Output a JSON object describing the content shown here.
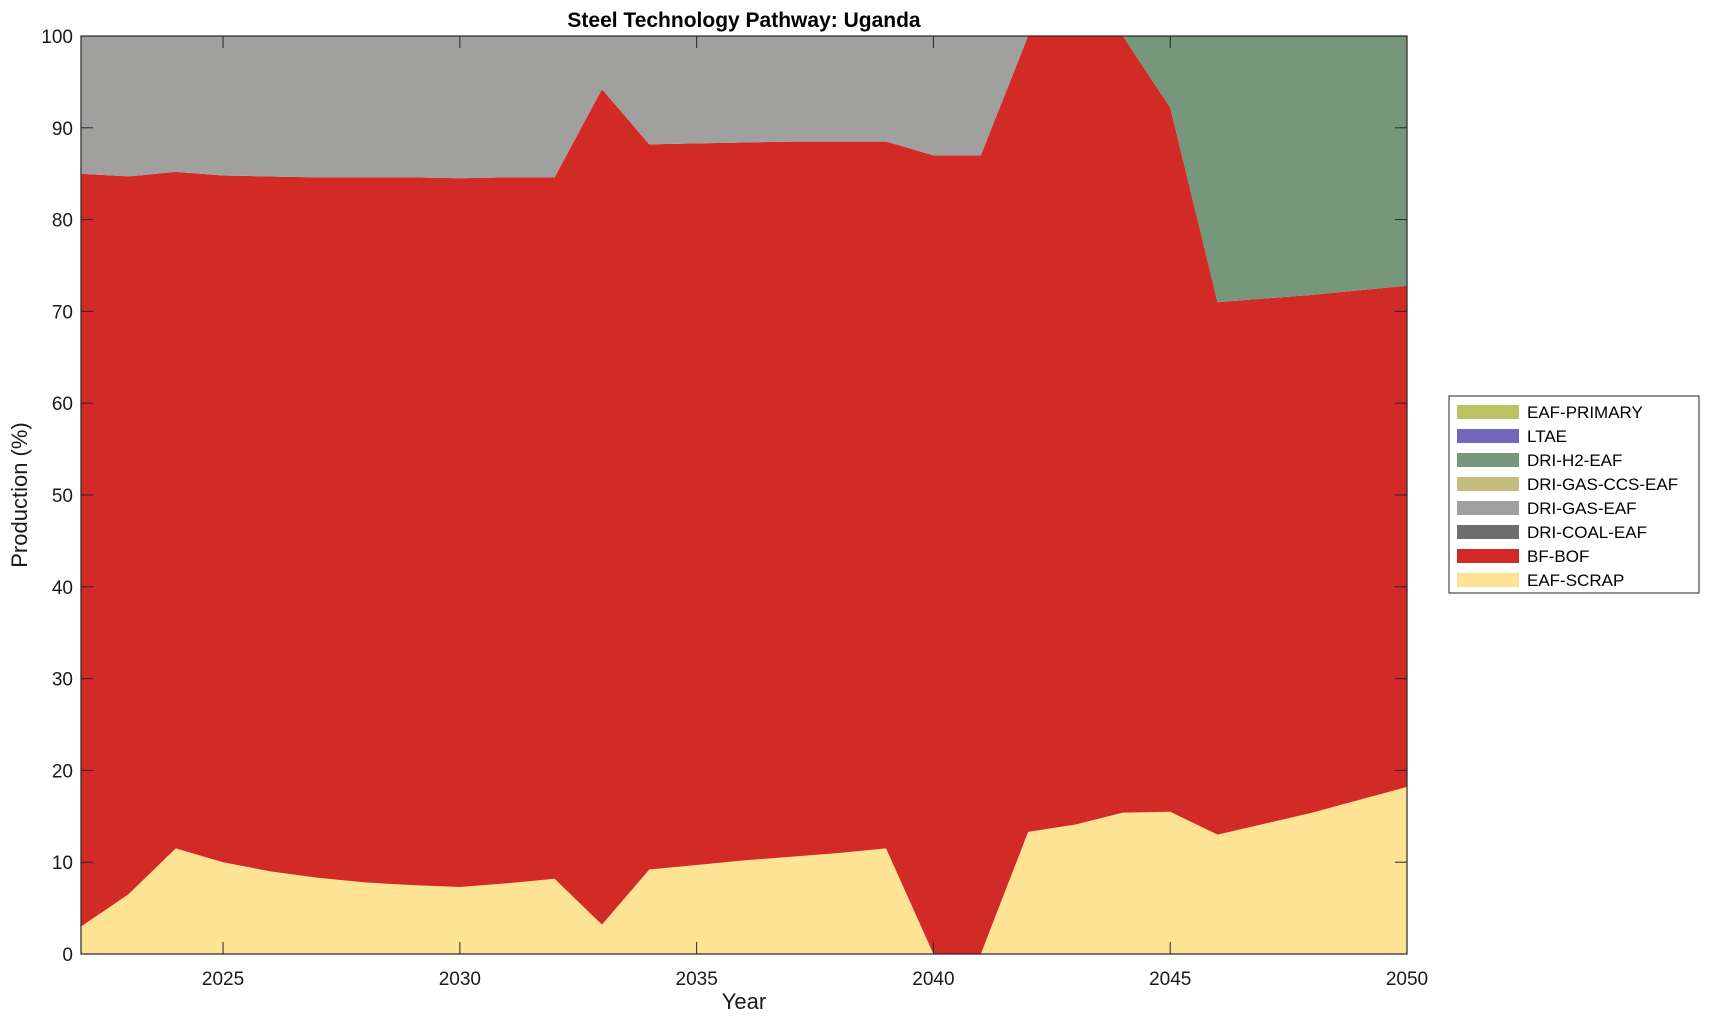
{
  "chart_data": {
    "type": "area",
    "stacked": true,
    "title": "Steel Technology Pathway: Uganda",
    "xlabel": "Year",
    "ylabel": "Production (%)",
    "xlim": [
      2022,
      2050
    ],
    "ylim": [
      0,
      100
    ],
    "x_ticks": [
      2025,
      2030,
      2035,
      2040,
      2045,
      2050
    ],
    "y_ticks": [
      0,
      10,
      20,
      30,
      40,
      50,
      60,
      70,
      80,
      90,
      100
    ],
    "grid": false,
    "legend_position": "right",
    "x": [
      2022,
      2023,
      2024,
      2025,
      2026,
      2027,
      2028,
      2029,
      2030,
      2031,
      2032,
      2033,
      2034,
      2035,
      2036,
      2037,
      2038,
      2039,
      2040,
      2041,
      2042,
      2043,
      2044,
      2045,
      2046,
      2047,
      2048,
      2049,
      2050
    ],
    "series": [
      {
        "name": "EAF-SCRAP",
        "color": "#FFE394",
        "values": [
          3.0,
          6.5,
          11.5,
          10.0,
          9.0,
          8.3,
          7.8,
          7.5,
          7.3,
          7.7,
          8.2,
          3.2,
          9.2,
          9.7,
          10.2,
          10.6,
          11.0,
          11.5,
          0.0,
          0.0,
          13.3,
          14.1,
          15.4,
          15.5,
          13.0,
          14.2,
          15.4,
          16.8,
          18.2
        ]
      },
      {
        "name": "BF-BOF",
        "color": "#D22A25",
        "values": [
          82.0,
          78.2,
          73.7,
          74.8,
          75.7,
          76.3,
          76.8,
          77.1,
          77.2,
          76.9,
          76.4,
          91.0,
          79.0,
          78.6,
          78.2,
          77.9,
          77.5,
          77.0,
          87.0,
          87.0,
          86.7,
          85.9,
          84.6,
          76.7,
          58.0,
          57.2,
          56.4,
          55.5,
          54.6
        ]
      },
      {
        "name": "DRI-COAL-EAF",
        "color": "#6D6D6D",
        "values": [
          0,
          0,
          0,
          0,
          0,
          0,
          0,
          0,
          0,
          0,
          0,
          0,
          0,
          0,
          0,
          0,
          0,
          0,
          0,
          0,
          0,
          0,
          0,
          0,
          0,
          0,
          0,
          0,
          0
        ]
      },
      {
        "name": "DRI-GAS-EAF",
        "color": "#A0A09E",
        "values": [
          15.0,
          15.3,
          14.8,
          15.2,
          15.3,
          15.4,
          15.4,
          15.4,
          15.5,
          15.4,
          15.4,
          5.8,
          11.8,
          11.7,
          11.6,
          11.5,
          11.5,
          11.5,
          13.0,
          13.0,
          0,
          0,
          0,
          0,
          0,
          0,
          0,
          0,
          0
        ]
      },
      {
        "name": "DRI-GAS-CCS-EAF",
        "color": "#C4BD7D",
        "values": [
          0,
          0,
          0,
          0,
          0,
          0,
          0,
          0,
          0,
          0,
          0,
          0,
          0,
          0,
          0,
          0,
          0,
          0,
          0,
          0,
          0,
          0,
          0,
          0,
          0,
          0,
          0,
          0,
          0
        ]
      },
      {
        "name": "DRI-H2-EAF",
        "color": "#76977C",
        "values": [
          0,
          0,
          0,
          0,
          0,
          0,
          0,
          0,
          0,
          0,
          0,
          0,
          0,
          0,
          0,
          0,
          0,
          0,
          0,
          0,
          0,
          0,
          0,
          7.8,
          29.0,
          28.6,
          28.2,
          27.7,
          27.2
        ]
      },
      {
        "name": "LTAE",
        "color": "#7467BB",
        "values": [
          0,
          0,
          0,
          0,
          0,
          0,
          0,
          0,
          0,
          0,
          0,
          0,
          0,
          0,
          0,
          0,
          0,
          0,
          0,
          0,
          0,
          0,
          0,
          0,
          0,
          0,
          0,
          0,
          0
        ]
      },
      {
        "name": "EAF-PRIMARY",
        "color": "#BCC365",
        "values": [
          0,
          0,
          0,
          0,
          0,
          0,
          0,
          0,
          0,
          0,
          0,
          0,
          0,
          0,
          0,
          0,
          0,
          0,
          0,
          0,
          0,
          0,
          0,
          0,
          0,
          0,
          0,
          0,
          0
        ]
      }
    ],
    "legend_order": [
      "EAF-PRIMARY",
      "LTAE",
      "DRI-H2-EAF",
      "DRI-GAS-CCS-EAF",
      "DRI-GAS-EAF",
      "DRI-COAL-EAF",
      "BF-BOF",
      "EAF-SCRAP"
    ]
  }
}
